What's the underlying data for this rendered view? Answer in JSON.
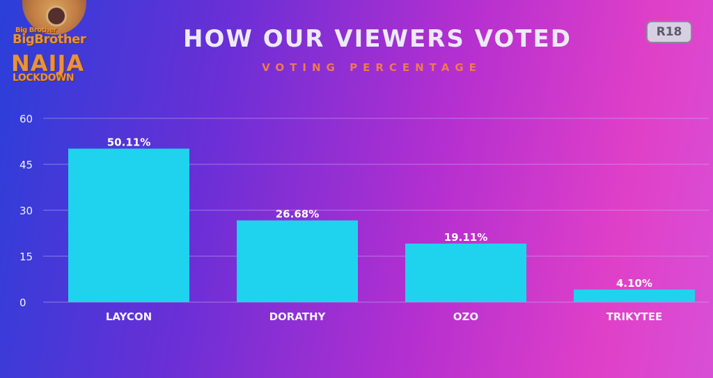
{
  "logo": {
    "line1": "Big Brother",
    "line2": "BigBrother",
    "line3": "NAIJA",
    "line4": "LOCKDOWN"
  },
  "header": {
    "title": "HOW OUR VIEWERS VOTED",
    "subtitle": "VOTING PERCENTAGE"
  },
  "rating_badge": "R18",
  "colors": {
    "bar": "#1fd3ef",
    "title": "#ecebf5",
    "subtitle": "#f07a50",
    "axis_text": "#f2f2f8"
  },
  "chart_data": {
    "type": "bar",
    "title": "HOW OUR VIEWERS VOTED",
    "subtitle": "VOTING PERCENTAGE",
    "categories": [
      "LAYCON",
      "DORATHY",
      "OZO",
      "TRIKYTEE"
    ],
    "values": [
      50.11,
      26.68,
      19.11,
      4.1
    ],
    "data_labels": [
      "50.11%",
      "26.68%",
      "19.11%",
      "4.10%"
    ],
    "yticks": [
      0,
      15,
      30,
      45,
      60
    ],
    "ylim": [
      0,
      60
    ],
    "xlabel": "",
    "ylabel": "",
    "grid": true,
    "legend": "none"
  }
}
